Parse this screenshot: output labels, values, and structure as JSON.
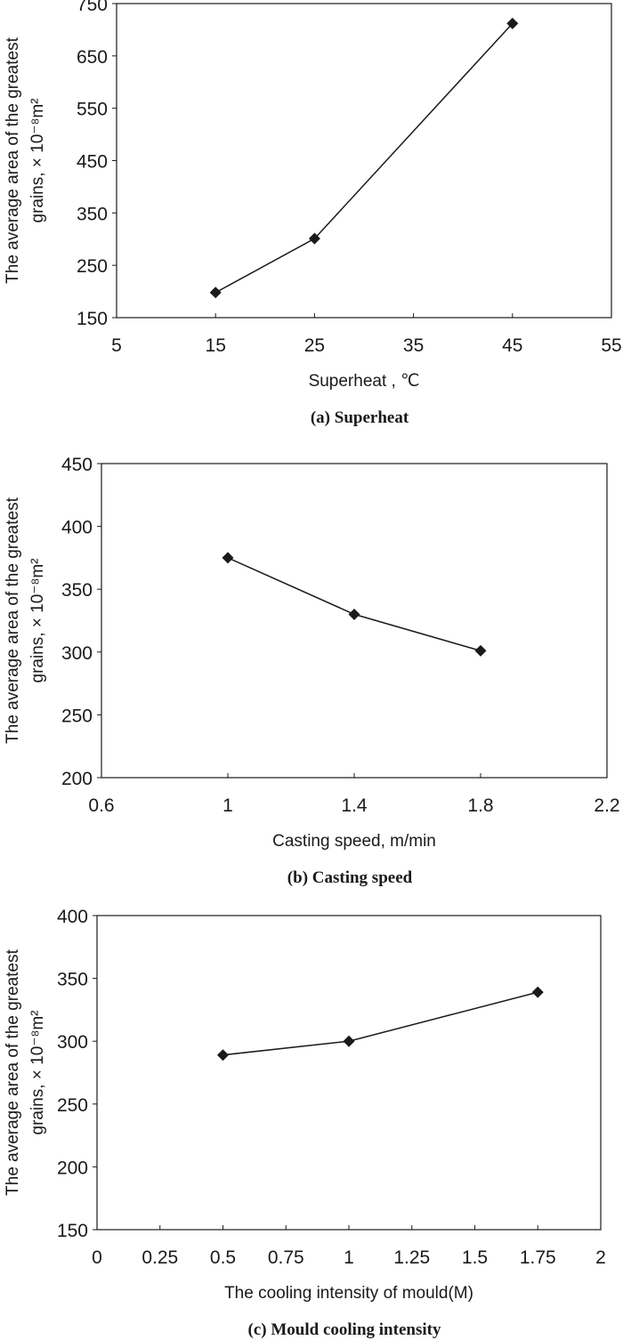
{
  "chart_data": [
    {
      "type": "line",
      "caption": "(a) Superheat",
      "xlabel": "Superheat , ℃",
      "ylabel_line1": "The average area of the greatest",
      "ylabel_line2": "grains, × 10⁻⁸m²",
      "xlim": [
        5,
        55
      ],
      "ylim": [
        150,
        750
      ],
      "xticks": [
        5,
        15,
        25,
        35,
        45,
        55
      ],
      "xtick_labels": [
        "5",
        "15",
        "25",
        "35",
        "45",
        "55"
      ],
      "yticks": [
        150,
        250,
        350,
        450,
        550,
        650,
        750
      ],
      "ytick_labels": [
        "150",
        "250",
        "350",
        "450",
        "550",
        "650",
        "750"
      ],
      "grid": false,
      "marker": "diamond",
      "x": [
        15,
        25,
        45
      ],
      "y": [
        198,
        301,
        712
      ]
    },
    {
      "type": "line",
      "caption": "(b) Casting speed",
      "xlabel": "Casting speed, m/min",
      "ylabel_line1": "The average area of the greatest",
      "ylabel_line2": "grains, × 10⁻⁸m²",
      "xlim": [
        0.6,
        2.2
      ],
      "ylim": [
        200,
        450
      ],
      "xticks": [
        0.6,
        1,
        1.4,
        1.8,
        2.2
      ],
      "xtick_labels": [
        "0.6",
        "1",
        "1.4",
        "1.8",
        "2.2"
      ],
      "yticks": [
        200,
        250,
        300,
        350,
        400,
        450
      ],
      "ytick_labels": [
        "200",
        "250",
        "300",
        "350",
        "400",
        "450"
      ],
      "grid": false,
      "marker": "diamond",
      "x": [
        1.0,
        1.4,
        1.8
      ],
      "y": [
        375,
        330,
        301
      ]
    },
    {
      "type": "line",
      "caption": "(c) Mould cooling intensity",
      "xlabel": "The cooling intensity of mould(M)",
      "ylabel_line1": "The average area of the greatest",
      "ylabel_line2": "grains, × 10⁻⁸m²",
      "xlim": [
        0,
        2
      ],
      "ylim": [
        150,
        400
      ],
      "xticks": [
        0,
        0.25,
        0.5,
        0.75,
        1,
        1.25,
        1.5,
        1.75,
        2
      ],
      "xtick_labels": [
        "0",
        "0.25",
        "0.5",
        "0.75",
        "1",
        "1.25",
        "1.5",
        "1.75",
        "2"
      ],
      "yticks": [
        150,
        200,
        250,
        300,
        350,
        400
      ],
      "ytick_labels": [
        "150",
        "200",
        "250",
        "300",
        "350",
        "400"
      ],
      "grid": false,
      "marker": "diamond",
      "x": [
        0.5,
        1.0,
        1.75
      ],
      "y": [
        289,
        300,
        339
      ]
    }
  ],
  "colors": {
    "line": "#1a1a1a",
    "marker": "#1a1a1a",
    "background": "#ffffff"
  }
}
